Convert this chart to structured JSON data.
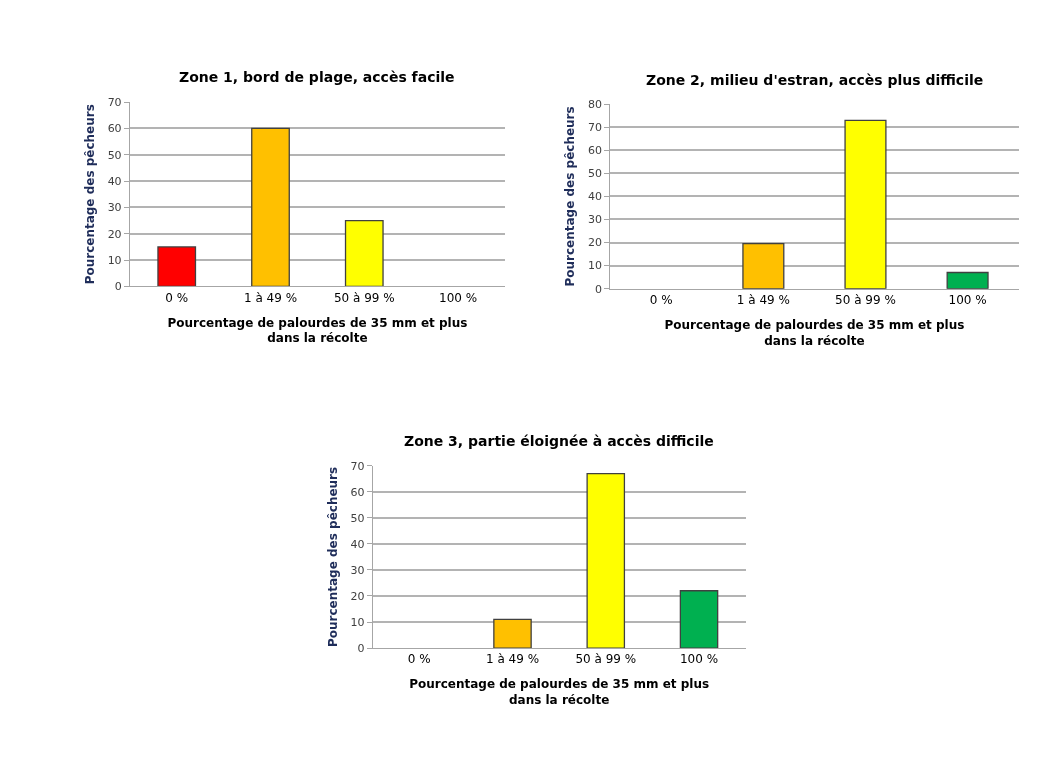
{
  "chart_data": [
    {
      "type": "bar",
      "title": "Zone 1, bord de plage, accès facile",
      "xlabel": "Pourcentage de palourdes de 35 mm et plus\ndans la récolte",
      "ylabel": "Pourcentage des pêcheurs",
      "categories": [
        "0 %",
        "1 à 49 %",
        "50 à 99 %",
        "100 %"
      ],
      "values": [
        15,
        60,
        25,
        0
      ],
      "colors": [
        "#ff0000",
        "#ffc000",
        "#ffff00",
        null
      ],
      "ylim": [
        0,
        70
      ],
      "yticks": [
        0,
        10,
        20,
        30,
        40,
        50,
        60,
        70
      ],
      "grid": "y"
    },
    {
      "type": "bar",
      "title": "Zone 2, milieu d'estran, accès plus difficile",
      "xlabel": "Pourcentage de palourdes de 35 mm et plus\ndans la récolte",
      "ylabel": "Pourcentage des pêcheurs",
      "categories": [
        "0 %",
        "1 à 49 %",
        "50 à 99 %",
        "100 %"
      ],
      "values": [
        0,
        19.5,
        73,
        7
      ],
      "colors": [
        null,
        "#ffc000",
        "#ffff00",
        "#00b050"
      ],
      "ylim": [
        0,
        80
      ],
      "yticks": [
        0,
        10,
        20,
        30,
        40,
        50,
        60,
        70,
        80
      ],
      "grid": "y"
    },
    {
      "type": "bar",
      "title": "Zone 3, partie éloignée à accès difficile",
      "xlabel": "Pourcentage de palourdes de 35 mm et plus\ndans la récolte",
      "ylabel": "Pourcentage des pêcheurs",
      "categories": [
        "0 %",
        "1 à 49 %",
        "50 à 99 %",
        "100 %"
      ],
      "values": [
        0,
        11,
        67,
        22
      ],
      "colors": [
        null,
        "#ffc000",
        "#ffff00",
        "#00b050"
      ],
      "ylim": [
        0,
        70
      ],
      "yticks": [
        0,
        10,
        20,
        30,
        40,
        50,
        60,
        70
      ],
      "grid": "y"
    }
  ]
}
